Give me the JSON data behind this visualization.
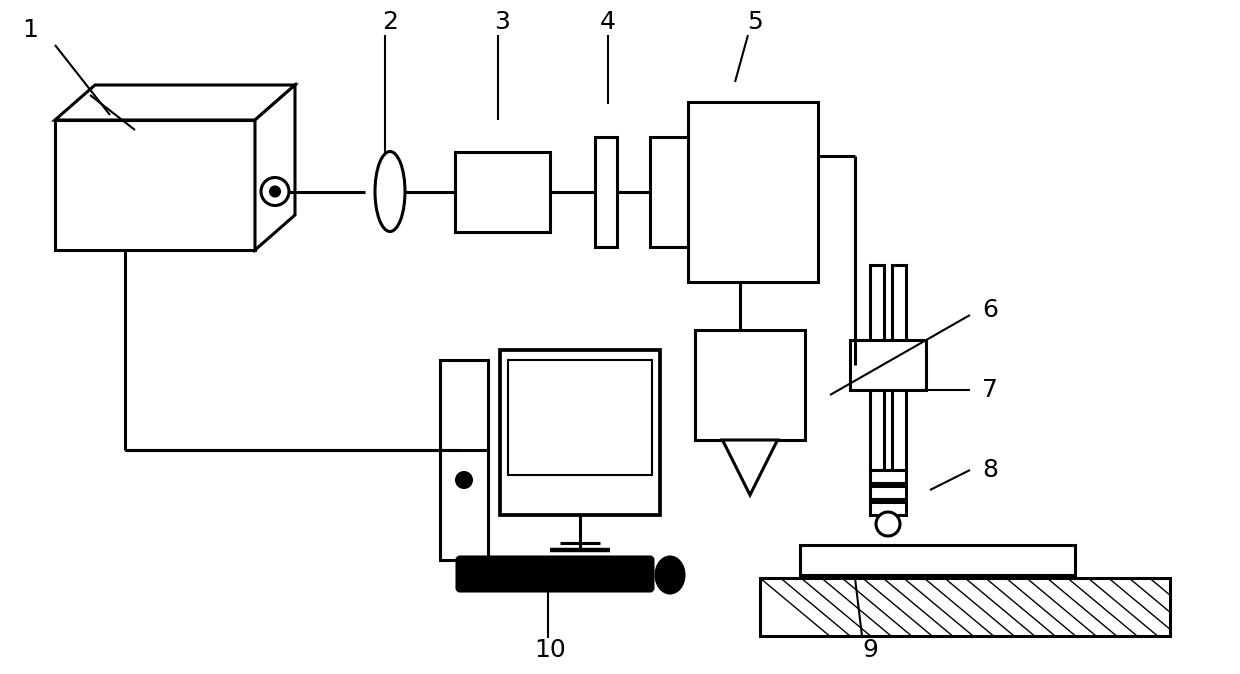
{
  "bg_color": "#ffffff",
  "line_color": "#000000",
  "lw": 2.2,
  "fig_width": 12.4,
  "fig_height": 6.74
}
